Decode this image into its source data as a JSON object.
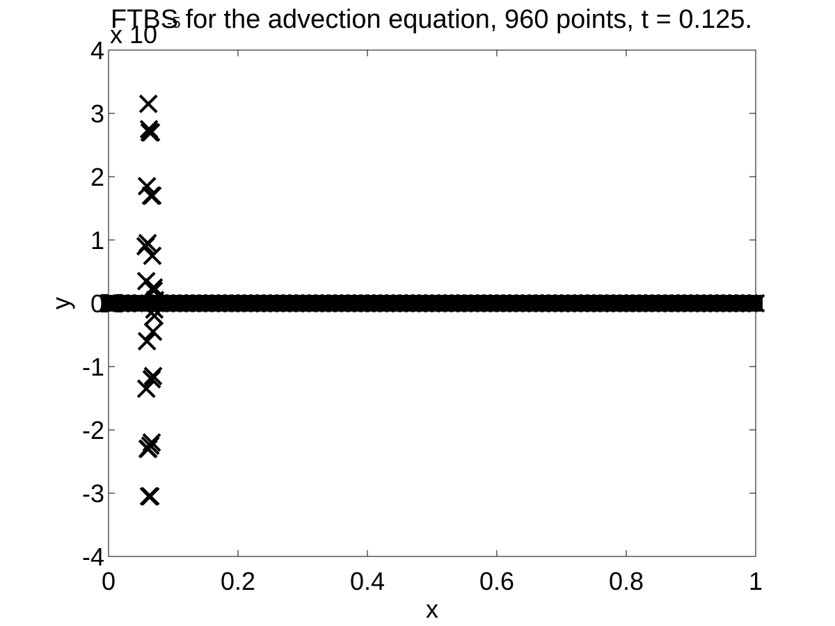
{
  "chart_data": {
    "type": "scatter",
    "title": "FTBS for the advection equation, 960 points, t = 0.125.",
    "xlabel": "x",
    "ylabel": "y",
    "xlim": [
      0,
      1
    ],
    "ylim": [
      -4e-05,
      4e-05
    ],
    "xticks": [
      0,
      0.2,
      0.4,
      0.6,
      0.8,
      1
    ],
    "yticks": [
      -4,
      -3,
      -2,
      -1,
      0,
      1,
      2,
      3,
      4
    ],
    "y_multiplier": {
      "base": "x 10",
      "exponent": "-5"
    },
    "grid": false,
    "legend": "none",
    "marker": "x",
    "series": [
      {
        "name": "",
        "color": "#000000",
        "x": [
          0.0573,
          0.0583,
          0.0594,
          0.0604,
          0.0615,
          0.0625,
          0.0635,
          0.0646,
          0.0656,
          0.0667,
          0.0677,
          0.0688,
          0.0698,
          0.0708,
          0.0719,
          0.0729,
          0.0,
          0.001,
          0.002,
          0.003,
          0.004,
          0.005,
          0.006,
          0.007,
          0.008,
          0.009,
          0.01,
          0.02,
          0.03,
          0.04,
          0.05,
          0.08,
          0.09,
          0.1,
          0.11,
          0.12,
          0.13,
          0.14,
          0.15,
          0.16,
          0.17,
          0.18,
          0.19,
          0.2,
          0.21,
          0.22,
          0.23,
          0.24,
          0.25,
          0.26,
          0.27,
          0.28,
          0.29,
          0.3,
          0.31,
          0.32,
          0.33,
          0.34,
          0.35,
          0.36,
          0.37,
          0.38,
          0.39,
          0.4,
          0.41,
          0.42,
          0.43,
          0.44,
          0.45,
          0.46,
          0.47,
          0.48,
          0.49,
          0.5,
          0.51,
          0.52,
          0.53,
          0.54,
          0.55,
          0.56,
          0.57,
          0.58,
          0.59,
          0.6,
          0.61,
          0.62,
          0.63,
          0.64,
          0.65,
          0.66,
          0.67,
          0.68,
          0.69,
          0.7,
          0.71,
          0.72,
          0.73,
          0.74,
          0.75,
          0.76,
          0.77,
          0.78,
          0.79,
          0.8,
          0.81,
          0.82,
          0.83,
          0.84,
          0.85,
          0.86,
          0.87,
          0.88,
          0.89,
          0.9,
          0.91,
          0.92,
          0.93,
          0.94,
          0.95,
          0.96,
          0.97,
          0.98,
          0.99,
          1.0,
          0.0583,
          0.0594,
          0.0604,
          0.0615,
          0.0625,
          0.0646,
          0.0656,
          0.0667,
          0.0677,
          0.0688,
          0.0698,
          0.0708
        ],
        "y": [
          9e-06,
          -1.35e-05,
          1.85e-05,
          -2.3e-05,
          3.15e-05,
          -3.05e-05,
          2.7e-05,
          -2.25e-05,
          1.7e-05,
          -1.2e-05,
          7.5e-06,
          -4.5e-06,
          2e-06,
          -1e-06,
          5e-07,
          0,
          0,
          0,
          0,
          0,
          0,
          0,
          0,
          0,
          0,
          0,
          0,
          0,
          0,
          0,
          0,
          0,
          0,
          0,
          0,
          0,
          0,
          0,
          0,
          0,
          0,
          0,
          0,
          0,
          0,
          0,
          0,
          0,
          0,
          0,
          0,
          0,
          0,
          0,
          0,
          0,
          0,
          0,
          0,
          0,
          0,
          0,
          0,
          0,
          0,
          0,
          0,
          0,
          0,
          0,
          0,
          0,
          0,
          0,
          0,
          0,
          0,
          0,
          0,
          0,
          0,
          0,
          0,
          0,
          0,
          0,
          0,
          0,
          0,
          0,
          0,
          0,
          0,
          0,
          0,
          0,
          0,
          0,
          0,
          0,
          0,
          0,
          0,
          0,
          0,
          0,
          0,
          0,
          0,
          0,
          0,
          0,
          0,
          0,
          0,
          0,
          0,
          0,
          0,
          0,
          0,
          0,
          0,
          0,
          3.5e-06,
          -6e-06,
          9.5e-06,
          -2.3e-05,
          2.75e-05,
          -3.05e-05,
          2.7e-05,
          -2.2e-05,
          1.7e-05,
          -1.15e-05,
          2.5e-06,
          -2e-06
        ]
      }
    ]
  }
}
